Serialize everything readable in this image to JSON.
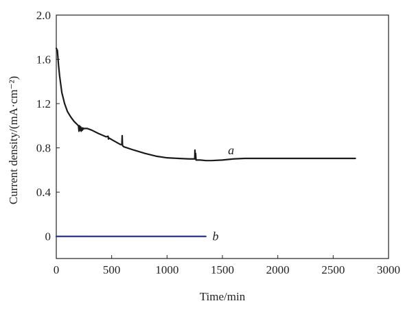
{
  "chart_data": {
    "type": "line",
    "title": "",
    "xlabel": "Time/min",
    "ylabel": "Current density/(mA·cm⁻²)",
    "xlim": [
      0,
      3000
    ],
    "ylim": [
      -0.2,
      2.0
    ],
    "xticks": [
      0,
      500,
      1000,
      1500,
      2000,
      2500,
      3000
    ],
    "yticks": [
      0,
      0.4,
      0.8,
      1.2,
      1.6,
      2.0
    ],
    "xtick_labels": [
      "0",
      "500",
      "1000",
      "1500",
      "2000",
      "2500",
      "3000"
    ],
    "ytick_labels": [
      "0",
      "0.4",
      "0.8",
      "1.2",
      "1.6",
      "2.0"
    ],
    "grid": false,
    "series": [
      {
        "name": "a",
        "color": "#1a1a1a",
        "x": [
          0,
          10,
          20,
          30,
          50,
          75,
          100,
          130,
          160,
          190,
          200,
          205,
          210,
          215,
          220,
          225,
          230,
          235,
          240,
          245,
          250,
          280,
          320,
          380,
          450,
          468,
          471,
          474,
          500,
          580,
          592,
          595,
          598,
          610,
          700,
          800,
          900,
          1000,
          1100,
          1200,
          1250,
          1252,
          1255,
          1258,
          1262,
          1300,
          1350,
          1400,
          1500,
          1600,
          1700,
          1800,
          1900,
          2000,
          2100,
          2200,
          2300,
          2400,
          2500,
          2600,
          2700
        ],
        "y": [
          1.7,
          1.68,
          1.55,
          1.45,
          1.3,
          1.2,
          1.13,
          1.08,
          1.04,
          1.01,
          1.0,
          0.95,
          1.0,
          0.96,
          0.99,
          0.95,
          0.98,
          0.96,
          0.98,
          0.97,
          0.975,
          0.975,
          0.96,
          0.93,
          0.9,
          0.905,
          0.88,
          0.89,
          0.875,
          0.83,
          0.83,
          0.91,
          0.82,
          0.81,
          0.78,
          0.75,
          0.725,
          0.71,
          0.705,
          0.7,
          0.7,
          0.78,
          0.7,
          0.75,
          0.69,
          0.69,
          0.685,
          0.685,
          0.69,
          0.7,
          0.705,
          0.705,
          0.705,
          0.705,
          0.705,
          0.705,
          0.705,
          0.705,
          0.705,
          0.705,
          0.705
        ],
        "label_at": [
          1550,
          0.78
        ]
      },
      {
        "name": "b",
        "color": "#2a3388",
        "x": [
          0,
          1350
        ],
        "y": [
          0,
          0
        ],
        "label_at": [
          1410,
          0.0
        ]
      }
    ]
  }
}
